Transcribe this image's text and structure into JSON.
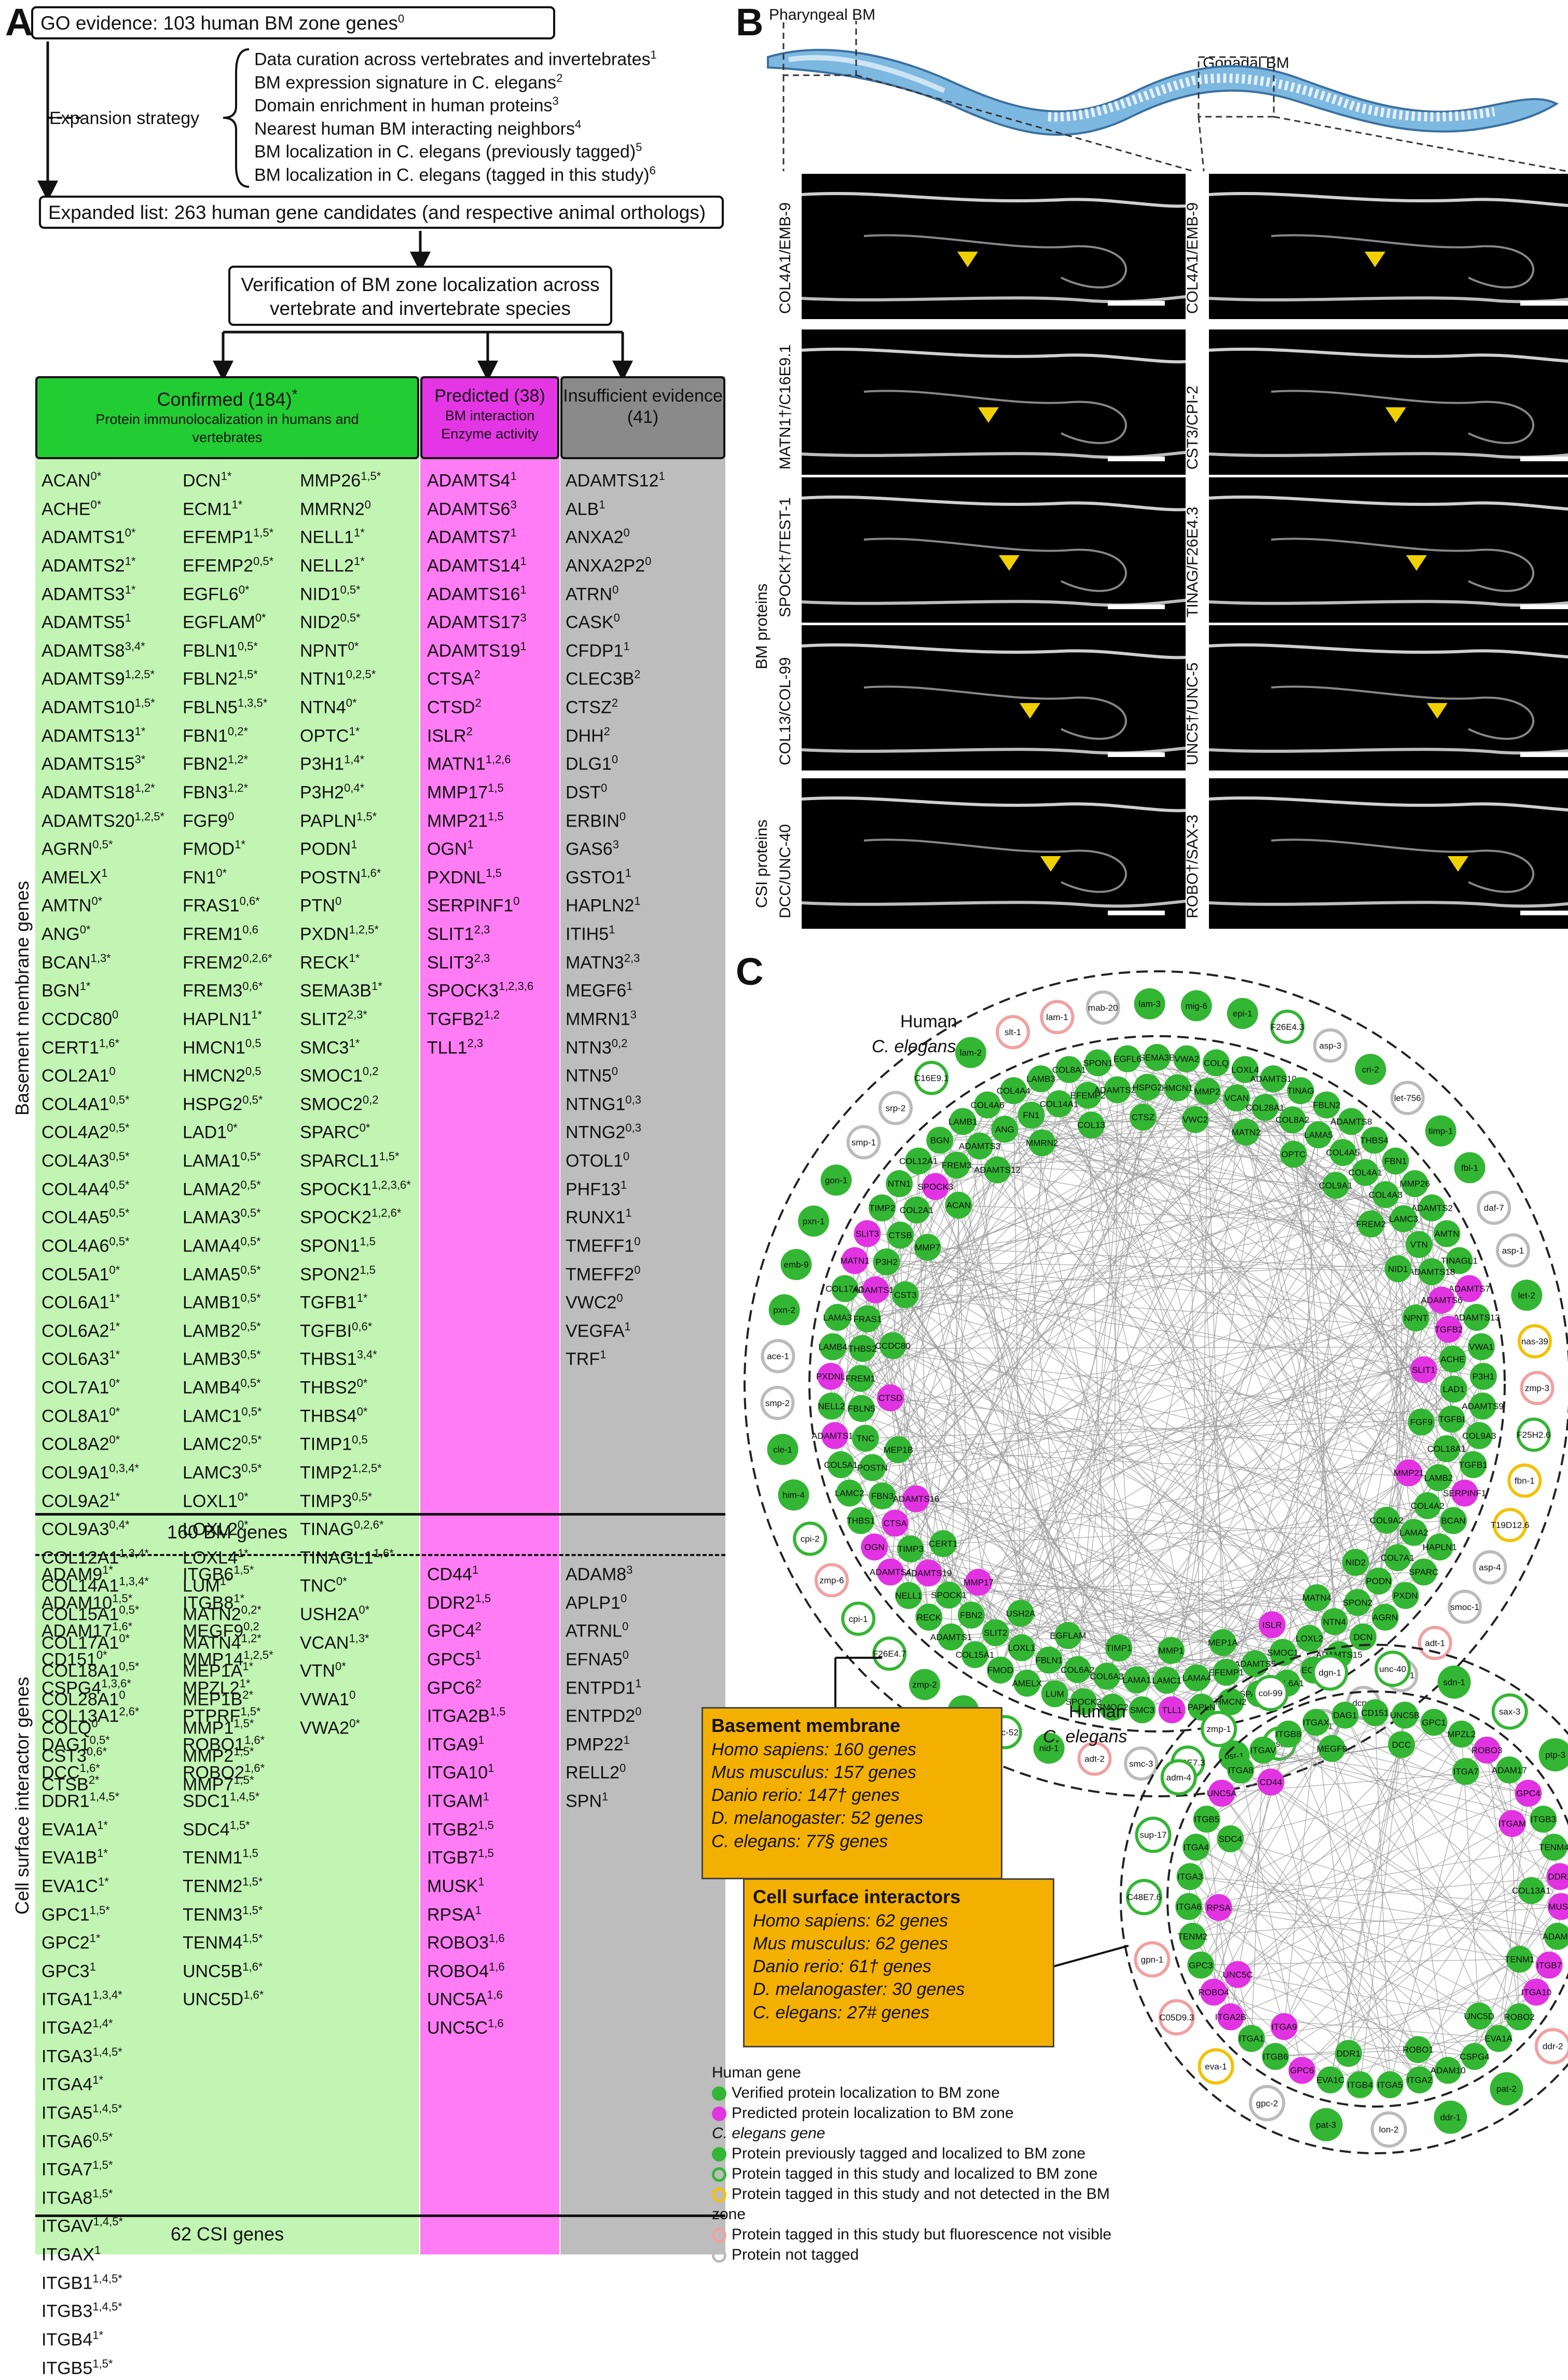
{
  "panels": {
    "a": "A",
    "b": "B",
    "c": "C"
  },
  "panel_a": {
    "go_box": "GO evidence: 103 human BM zone genes",
    "go_sup": "0",
    "expansion_label": "Expansion strategy",
    "strategies": [
      {
        "text": "Data curation across vertebrates and invertebrates",
        "sup": "1"
      },
      {
        "text": "BM expression signature in C. elegans",
        "sup": "2"
      },
      {
        "text": "Domain enrichment in human proteins",
        "sup": "3"
      },
      {
        "text": "Nearest human BM interacting neighbors",
        "sup": "4"
      },
      {
        "text": "BM localization in C. elegans (previously tagged)",
        "sup": "5"
      },
      {
        "text": "BM localization in C. elegans (tagged in this study)",
        "sup": "6"
      }
    ],
    "expanded_box": "Expanded list: 263 human gene candidates (and respective animal orthologs)",
    "verification_box": "Verification of BM zone localization across vertebrate and invertebrate species",
    "headers": {
      "confirmed": "Confirmed (184)",
      "confirmed_star": "*",
      "confirmed_sub": "Protein immunolocalization in humans and vertebrates",
      "predicted": "Predicted (38)",
      "predicted_sub1": "BM interaction",
      "predicted_sub2": "Enzyme activity",
      "insufficient": "Insufficient evidence",
      "insufficient_n": "(41)"
    },
    "bm_title": "Basement membrane genes",
    "csi_title": "Cell surface interactor genes",
    "bm_count": "160 BM genes",
    "csi_count": "62 CSI genes",
    "bm_confirmed_col1": [
      "ACAN 0*",
      "ACHE 0*",
      "ADAMTS1 0*",
      "ADAMTS2 1*",
      "ADAMTS3 1*",
      "ADAMTS5 1",
      "ADAMTS8 3,4*",
      "ADAMTS9 1,2,5*",
      "ADAMTS10 1,5*",
      "ADAMTS13 1*",
      "ADAMTS15 3*",
      "ADAMTS18 1,2*",
      "ADAMTS20 1,2,5*",
      "AGRN 0,5*",
      "AMELX 1",
      "AMTN 0*",
      "ANG 0*",
      "BCAN 1,3*",
      "BGN 1*",
      "CCDC80 0",
      "CERT1 1,6*",
      "COL2A1 0",
      "COL4A1 0,5*",
      "COL4A2 0,5*",
      "COL4A3 0,5*",
      "COL4A4 0,5*",
      "COL4A5 0,5*",
      "COL4A6 0,5*",
      "COL5A1 0*",
      "COL6A1 1*",
      "COL6A2 1*",
      "COL6A3 1*",
      "COL7A1 0*",
      "COL8A1 0*",
      "COL8A2 0*",
      "COL9A1 0,3,4*",
      "COL9A2 1*",
      "COL9A3 0,4*",
      "COL12A1 1,3,4*",
      "COL14A1 1,3,4*",
      "COL15A1 0,5*",
      "COL17A1 0*",
      "COL18A1 0,5*",
      "COL28A1 0",
      "COLQ 0",
      "CST3 0,6*",
      "CTSB 2*"
    ],
    "bm_confirmed_col2": [
      "DCN 1*",
      "ECM1 1*",
      "EFEMP1 1,5*",
      "EFEMP2 0,5*",
      "EGFL6 0*",
      "EGFLAM 0*",
      "FBLN1 0,5*",
      "FBLN2 1,5*",
      "FBLN5 1,3,5*",
      "FBN1 0,2*",
      "FBN2 1,2*",
      "FBN3 1,2*",
      "FGF9 0",
      "FMOD 1*",
      "FN1 0*",
      "FRAS1 0,6*",
      "FREM1 0,6",
      "FREM2 0,2,6*",
      "FREM3 0,6*",
      "HAPLN1 1*",
      "HMCN1 0,5",
      "HMCN2 0,5",
      "HSPG2 0,5*",
      "LAD1 0*",
      "LAMA1 0,5*",
      "LAMA2 0,5*",
      "LAMA3 0,5*",
      "LAMA4 0,5*",
      "LAMA5 0,5*",
      "LAMB1 0,5*",
      "LAMB2 0,5*",
      "LAMB3 0,5*",
      "LAMB4 0,5*",
      "LAMC1 0,5*",
      "LAMC2 0,5*",
      "LAMC3 0,5*",
      "LOXL1 0*",
      "LOXL2 0*",
      "LOXL4 1*",
      "LUM 1*",
      "MATN2 0,2*",
      "MATN4 1,2*",
      "MEP1A 1*",
      "MEP1B 2*",
      "MMP1 1,5*",
      "MMP2 1,5*",
      "MMP7 1,5*"
    ],
    "bm_confirmed_col3": [
      "MMP26 1,5*",
      "MMRN2 0",
      "NELL1 1*",
      "NELL2 1*",
      "NID1 0,5*",
      "NID2 0,5*",
      "NPNT 0*",
      "NTN1 0,2,5*",
      "NTN4 0*",
      "OPTC 1*",
      "P3H1 1,4*",
      "P3H2 0,4*",
      "PAPLN 1,5*",
      "PODN 1",
      "POSTN 1,6*",
      "PTN 0",
      "PXDN 1,2,5*",
      "RECK 1*",
      "SEMA3B 1*",
      "SLIT2 2,3*",
      "SMC3 1*",
      "SMOC1 0,2",
      "SMOC2 0,2",
      "SPARC 0*",
      "SPARCL1 1,5*",
      "SPOCK1 1,2,3,6*",
      "SPOCK2 1,2,6*",
      "SPON1 1,5",
      "SPON2 1,5",
      "TGFB1 1*",
      "TGFBI 0,6*",
      "THBS1 3,4*",
      "THBS2 0*",
      "THBS4 0*",
      "TIMP1 0,5",
      "TIMP2 1,2,5*",
      "TIMP3 0,5*",
      "TINAG 0,2,6*",
      "TINAGL1 1,6*",
      "TNC 0*",
      "USH2A 0*",
      "VCAN 1,3*",
      "VTN 0*",
      "VWA1 0",
      "VWA2 0*"
    ],
    "bm_predicted": [
      "ADAMTS4 1",
      "ADAMTS6 3",
      "ADAMTS7 1",
      "ADAMTS14 1",
      "ADAMTS16 1",
      "ADAMTS17 3",
      "ADAMTS19 1",
      "CTSA 2",
      "CTSD 2",
      "ISLR 2",
      "MATN1 1,2,6",
      "MMP17 1,5",
      "MMP21 1,5",
      "OGN 1",
      "PXDNL 1,5",
      "SERPINF1 0",
      "SLIT1 2,3",
      "SLIT3 2,3",
      "SPOCK3 1,2,3,6",
      "TGFB2 1,2",
      "TLL1 2,3"
    ],
    "bm_insufficient": [
      "ADAMTS12 1",
      "ALB 1",
      "ANXA2 0",
      "ANXA2P2 0",
      "ATRN 0",
      "CASK 0",
      "CFDP1 1",
      "CLEC3B 2",
      "CTSZ 2",
      "DHH 2",
      "DLG1 0",
      "DST 0",
      "ERBIN 0",
      "GAS6 3",
      "GSTO1 1",
      "HAPLN2 1",
      "ITIH5 1",
      "MATN3 2,3",
      "MEGF6 1",
      "MMRN1 3",
      "NTN3 0,2",
      "NTN5 0",
      "NTNG1 0,3",
      "NTNG2 0,3",
      "OTOL1 0",
      "PHF13 1",
      "RUNX1 1",
      "TMEFF1 0",
      "TMEFF2 0",
      "VWC2 0",
      "VEGFA 1",
      "TRF 1"
    ],
    "csi_confirmed_col1": [
      "ADAM9 1*",
      "ADAM10 1,5*",
      "ADAM17 1,6*",
      "CD151 0*",
      "CSPG4 1,3,6*",
      "COL13A1 2,6*",
      "DAG1 0,5*",
      "DCC 1,6*",
      "DDR1 1,4,5*",
      "EVA1A 1*",
      "EVA1B 1*",
      "EVA1C 1*",
      "GPC1 1,5*",
      "GPC2 1*",
      "GPC3 1",
      "ITGA1 1,3,4*",
      "ITGA2 1,4*",
      "ITGA3 1,4,5*",
      "ITGA4 1*",
      "ITGA5 1,4,5*",
      "ITGA6 0,5*",
      "ITGA7 1,5*",
      "ITGA8 1,5*",
      "ITGAV 1,4,5*",
      "ITGAX 1",
      "ITGB1 1,4,5*",
      "ITGB3 1,4,5*",
      "ITGB4 1*",
      "ITGB5 1,5*"
    ],
    "csi_confirmed_col2": [
      "ITGB6 1,5*",
      "ITGB8 1*",
      "MEGF9 0,2",
      "MMP14 1,2,5*",
      "MPZL2 1*",
      "PTPRF 1,5*",
      "ROBO1 1,6*",
      "ROBO2 1,6*",
      "SDC1 1,4,5*",
      "SDC4 1,5*",
      "TENM1 1,5",
      "TENM2 1,5*",
      "TENM3 1,5*",
      "TENM4 1,5*",
      "UNC5B 1,6*",
      "UNC5D 1,6*"
    ],
    "csi_predicted": [
      "CD44 1",
      "DDR2 1,5",
      "GPC4 2",
      "GPC5 1",
      "GPC6 2",
      "ITGA2B 1,5",
      "ITGA9 1",
      "ITGA10 1",
      "ITGAM 1",
      "ITGB2 1,5",
      "ITGB7 1,5",
      "MUSK 1",
      "RPSA 1",
      "ROBO3 1,6",
      "ROBO4 1,6",
      "UNC5A 1,6",
      "UNC5C 1,6"
    ],
    "csi_insufficient": [
      "ADAM8 3",
      "APLP1 0",
      "ATRNL 0",
      "EFNA5 0",
      "ENTPD1 1",
      "ENTPD2 0",
      "PMP22 1",
      "RELL2 0",
      "SPN 1"
    ]
  },
  "panel_b": {
    "pharyngeal": "Pharyngeal BM",
    "gonadal": "Gonadal BM",
    "bm_proteins": "BM proteins",
    "csi_proteins": "CSI proteins",
    "left_labels": [
      "COL4A1/EMB-9",
      "MATN1†/C16E9.1",
      "SPOCK†/TEST-1",
      "COL13/COL-99",
      "DCC/UNC-40"
    ],
    "right_labels": [
      "COL4A1/EMB-9",
      "CST3/CPI-2",
      "TINAG/F26E4.3",
      "UNC5†/UNC-5",
      "ROBO†/SAX-3"
    ]
  },
  "panel_c": {
    "human": "Human",
    "celegans": "C. elegans",
    "bm_box": {
      "title": "Basement membrane",
      "rows": [
        "Homo sapiens: 160 genes",
        "Mus musculus: 157 genes",
        "Danio rerio: 147† genes",
        "D. melanogaster: 52 genes",
        "C. elegans: 77§ genes"
      ]
    },
    "csi_box": {
      "title": "Cell surface interactors",
      "rows": [
        "Homo sapiens: 62 genes",
        "Mus musculus: 62 genes",
        "Danio rerio: 61† genes",
        "D. melanogaster: 30 genes",
        "C. elegans: 27# genes"
      ]
    },
    "legend_human_title": "Human gene",
    "legend_human": [
      "Verified protein localization to BM zone",
      "Predicted protein localization to BM zone"
    ],
    "legend_worm_title": "C. elegans gene",
    "legend_worm": [
      "Protein previously tagged and localized to BM zone",
      "Protein tagged in this study and localized to BM zone",
      "Protein tagged in this study and not detected in the BM zone",
      "Protein tagged in this study but fluorescence not visible",
      "Protein not tagged"
    ],
    "colors": {
      "verified": "#33b633",
      "predicted": "#e233e2",
      "yellow": "#f3c200",
      "pink": "#f2a0a0",
      "grey": "#bbbbbb"
    },
    "bm_inner_nodes": [
      "SEMA3B",
      "VWA2",
      "COLQ",
      "LOXL4",
      "ADAMTS10",
      "TINAG",
      "FBLN2",
      "ADAMTS8",
      "THBS4",
      "FBN1",
      "MMP26",
      "ADAMTS2",
      "AMTN",
      "TINAGL1",
      "ADAMTS7",
      "ADAMTS13",
      "VWA1",
      "P3H1",
      "ADAMTS9",
      "COL9A3",
      "TGFB1",
      "SERPINF1",
      "BCAN",
      "HAPLN1",
      "SPARC",
      "PXDN",
      "AGRN",
      "DCN",
      "ADAMTS15",
      "ECM1",
      "COL6A1",
      "SPARCL1",
      "HMCN2",
      "PAPLN",
      "TLL1",
      "SMC3",
      "SMOC2",
      "SPOCK2",
      "LUM",
      "AMELX",
      "FMOD",
      "COL15A1",
      "ADAMTS1",
      "RECK",
      "NELL1",
      "ADAMTS4",
      "OGN",
      "THBS1",
      "LAMC2",
      "COL5A1",
      "ADAMTS17",
      "NELL2",
      "PXDNL",
      "LAMB4",
      "LAMA3",
      "COL17A1",
      "MATN1",
      "SLIT3",
      "TIMP2",
      "NTN1",
      "COL12A1",
      "BGN",
      "LAMB1",
      "COL4A6",
      "COL4A4",
      "LAMB3",
      "COL8A1",
      "SPON1",
      "EGFL6",
      "MMP2",
      "VCAN",
      "COL28A1",
      "COL8A2",
      "LAMA5",
      "COL4A5",
      "COL4A1",
      "COL4A3",
      "LAMC3",
      "VTN",
      "ADAMTS18",
      "ADAMTS6",
      "TGFB2",
      "ACHE",
      "LAD1",
      "TGFBI",
      "COL18A1",
      "LAMB2",
      "COL4A2",
      "LAMA2",
      "COL7A1",
      "PODN",
      "SPON2",
      "NTN4",
      "LOXL2",
      "SMOC1",
      "ADAMTS5",
      "EFEMP1",
      "LAMA4",
      "LAMC1",
      "LAMA1",
      "COL6A3",
      "COL6A2",
      "FBLN1",
      "LOXL1",
      "SLIT2",
      "FBN2",
      "SPOCK1",
      "ADAMTS19",
      "TIMP3",
      "CTSA",
      "FBN3",
      "POSTN",
      "TNC",
      "FBLN5",
      "FREM1",
      "THBS2",
      "FRAS1",
      "ADAMTS14",
      "P3H2",
      "CTSB",
      "COL2A1",
      "SPOCK3",
      "FREM3",
      "ADAMTS3",
      "ANG",
      "FN1",
      "COL14A1",
      "EFEMP2",
      "ADAMTS20",
      "HSPG2",
      "HMCN1",
      "MATN2",
      "OPTC",
      "COL9A1",
      "FREM2",
      "NID1",
      "NPNT",
      "SLIT1",
      "FGF9",
      "MMP21",
      "COL9A2",
      "NID2",
      "MATN4",
      "ISLR",
      "MEP1A",
      "MMP1",
      "TIMP1",
      "EGFLAM",
      "USH2A",
      "MMP17",
      "CERT1",
      "ADAMTS16",
      "MEP1B",
      "CTSD",
      "CCDC80",
      "CST3",
      "MMP7",
      "ACAN",
      "ADAMTS12",
      "MMRN2",
      "COL13",
      "CTSZ",
      "VWC2"
    ],
    "bm_outer_nodes": [
      "F26E4.3",
      "asp-3",
      "cri-2",
      "let-756",
      "timp-1",
      "fbl-1",
      "daf-7",
      "asp-1",
      "let-2",
      "nas-39",
      "zmp-3",
      "F25H2.6",
      "fbn-1",
      "T19D12.6",
      "asp-4",
      "smoc-1",
      "adt-1",
      "spon-1",
      "dcn-1",
      "egr-1",
      "test-1",
      "ost-1",
      "C48E7.3",
      "smc-3",
      "adt-2",
      "nid-1",
      "unc-52",
      "unc-6",
      "zmp-2",
      "F26E4.7",
      "cpi-1",
      "zmp-6",
      "cpi-2",
      "him-4",
      "cle-1",
      "smp-2",
      "ace-1",
      "pxn-2",
      "emb-9",
      "pxn-1",
      "gon-1",
      "smp-1",
      "srp-2",
      "C16E9.1",
      "lam-2",
      "slt-1",
      "lam-1",
      "mab-20",
      "lam-3",
      "mig-6",
      "epi-1"
    ],
    "csi_inner_nodes": [
      "CD151",
      "UNC5B",
      "GPC1",
      "MPZL2",
      "ROBO3",
      "ADAM17",
      "GPC4",
      "ITGB3",
      "TENM4",
      "DDR2",
      "MUSK",
      "ADAM9",
      "ITGB7",
      "ITGA10",
      "ROBO2",
      "EVA1A",
      "CSPG4",
      "ADAM10",
      "ITGA2",
      "ITGA5",
      "ITGB4",
      "EVA1C",
      "GPC6",
      "ITGB6",
      "ITGA1",
      "ITGA2B",
      "ROBO4",
      "GPC3",
      "TENM2",
      "ITGA6",
      "ITGA3",
      "ITGA4",
      "ITGB5",
      "UNC5A",
      "ITGA8",
      "ITGAV",
      "ITGB8",
      "ITGAX",
      "DAG1",
      "DCC",
      "ITGA7",
      "ITGAM",
      "COL13A1",
      "TENM1",
      "UNC5D",
      "ROBO1",
      "DDR1",
      "ITGA9",
      "UNC5C",
      "RPSA",
      "SDC4",
      "CD44",
      "MEGF9"
    ],
    "csi_outer_nodes": [
      "sdn-1",
      "sax-3",
      "ptp-3",
      "rps-0",
      "ten-1",
      "unc-5",
      "ina-1",
      "ddr-2",
      "pat-2",
      "ddr-1",
      "lon-2",
      "pat-3",
      "gpc-2",
      "eva-1",
      "C05D9.3",
      "gpn-1",
      "C48E7.6",
      "sup-17",
      "adm-4",
      "zmp-1",
      "col-99",
      "dgn-1",
      "unc-40"
    ]
  }
}
